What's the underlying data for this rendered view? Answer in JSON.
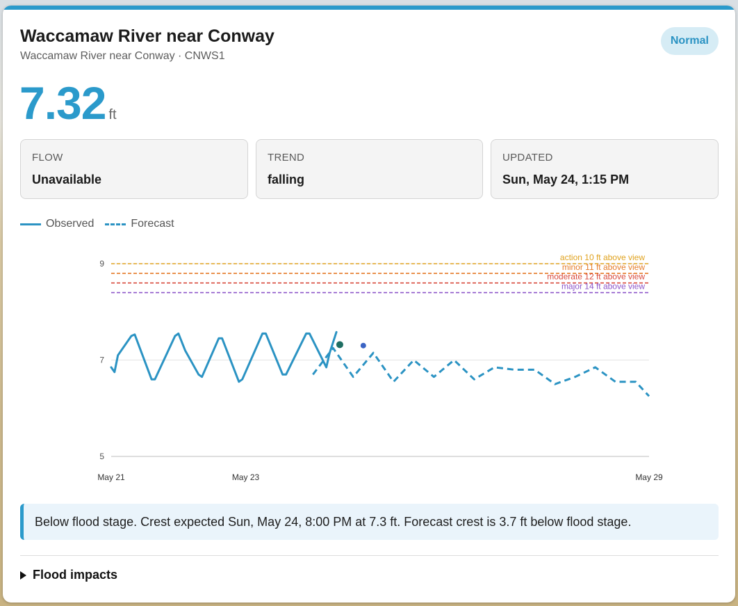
{
  "gauge": {
    "title": "Waccamaw River near Conway",
    "subtitle": "Waccamaw River near Conway · CNWS1",
    "status": "Normal",
    "stage_value": "7.32",
    "stage_unit": "ft"
  },
  "stats": [
    {
      "label": "FLOW",
      "value": "Unavailable"
    },
    {
      "label": "TREND",
      "value": "falling"
    },
    {
      "label": "UPDATED",
      "value": "Sun, May 24, 1:15 PM"
    }
  ],
  "legend": {
    "observed": "Observed",
    "forecast": "Forecast"
  },
  "colors": {
    "accent": "#2b9acb",
    "observed": "#2b93c3",
    "forecast": "#2b93c3",
    "latest_marker": "#1f6e63",
    "crest_marker": "#3b64c4",
    "action": "#e0a21e",
    "minor": "#e57c2b",
    "moderate": "#d84a3c",
    "major": "#8c55c9"
  },
  "chart_data": {
    "type": "line",
    "ylim": [
      5,
      9
    ],
    "ytick_labels": [
      "9",
      "7",
      "5"
    ],
    "yticks": [
      9,
      7,
      5
    ],
    "xtick_labels": [
      "May 21",
      "May 23",
      "May 29"
    ],
    "xticks": [
      21.0,
      23.0,
      29.0
    ],
    "thresholds": [
      {
        "name": "action",
        "label": "action 10 ft above view",
        "level": 9.0
      },
      {
        "name": "minor",
        "label": "minor 11 ft above view",
        "level": 8.8
      },
      {
        "name": "moderate",
        "label": "moderate 12 ft above view",
        "level": 8.6
      },
      {
        "name": "major",
        "label": "major 14 ft above view",
        "level": 8.4
      }
    ],
    "series": [
      {
        "name": "Observed",
        "x": [
          21.0,
          21.05,
          21.1,
          21.3,
          21.35,
          21.6,
          21.65,
          21.75,
          21.95,
          22.0,
          22.1,
          22.3,
          22.35,
          22.6,
          22.65,
          22.9,
          22.95,
          23.25,
          23.3,
          23.55,
          23.6,
          23.9,
          23.95,
          24.2,
          24.25,
          24.35
        ],
        "y": [
          6.85,
          6.75,
          7.1,
          7.5,
          7.53,
          6.6,
          6.6,
          6.9,
          7.5,
          7.55,
          7.2,
          6.7,
          6.65,
          7.45,
          7.45,
          6.55,
          6.6,
          7.55,
          7.55,
          6.7,
          6.7,
          7.55,
          7.55,
          6.85,
          7.15,
          7.58
        ]
      },
      {
        "name": "Forecast",
        "x": [
          24.0,
          24.3,
          24.6,
          24.9,
          25.2,
          25.5,
          25.8,
          26.1,
          26.4,
          26.7,
          27.0,
          27.3,
          27.6,
          27.9,
          28.2,
          28.5,
          28.8,
          29.0
        ],
        "y": [
          6.7,
          7.25,
          6.65,
          7.15,
          6.55,
          7.0,
          6.65,
          7.0,
          6.6,
          6.85,
          6.8,
          6.8,
          6.5,
          6.65,
          6.85,
          6.55,
          6.55,
          6.25
        ]
      }
    ],
    "latest_observed": {
      "x": 24.4,
      "y": 7.32
    },
    "forecast_crest": {
      "x": 24.75,
      "y": 7.3
    }
  },
  "callout": "Below flood stage. Crest expected Sun, May 24, 8:00 PM at 7.3 ft. Forecast crest is 3.7 ft below flood stage.",
  "impacts_label": "Flood impacts"
}
